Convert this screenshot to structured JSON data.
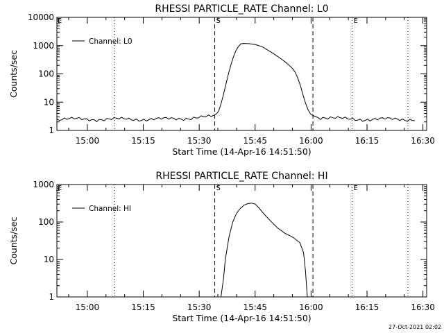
{
  "footer": {
    "timestamp": "27-Oct-2021 02:02"
  },
  "chart_data": [
    {
      "type": "line",
      "title": "RHESSI PARTICLE_RATE Channel: L0",
      "xlabel": "Start Time (14-Apr-16 14:51:50)",
      "ylabel": "Counts/sec",
      "y_scale": "log",
      "ylim": [
        1,
        10000
      ],
      "xlim": [
        "14:51:50",
        "16:31:00"
      ],
      "y_tick_labels": [
        "1",
        "10",
        "100",
        "1000",
        "10000"
      ],
      "x_tick_labels": [
        "15:00",
        "15:15",
        "15:30",
        "15:45",
        "16:00",
        "16:15",
        "16:30"
      ],
      "legend": {
        "position": "top-left",
        "entries": [
          "Channel: L0"
        ]
      },
      "markers": {
        "start_label": "S",
        "end_label": "E"
      },
      "vlines": [
        {
          "time": "15:07:20",
          "style": "dotted"
        },
        {
          "time": "15:34:10",
          "style": "dashed"
        },
        {
          "time": "16:00:30",
          "style": "dashed"
        },
        {
          "time": "16:11:00",
          "style": "dotted"
        },
        {
          "time": "16:26:00",
          "style": "dotted"
        },
        {
          "time": "16:31:00",
          "style": "dotted"
        }
      ],
      "series": [
        {
          "name": "Channel: L0",
          "x": [
            "14:51:50",
            "15:10:00",
            "15:20:00",
            "15:33:00",
            "15:35:00",
            "15:36:00",
            "15:37:00",
            "15:38:00",
            "15:39:00",
            "15:40:00",
            "15:41:00",
            "15:42:00",
            "15:43:00",
            "15:45:00",
            "15:47:00",
            "15:49:00",
            "15:51:00",
            "15:53:00",
            "15:55:00",
            "15:56:00",
            "15:57:00",
            "15:58:00",
            "15:59:00",
            "16:00:00",
            "16:02:00",
            "16:10:00",
            "16:20:00",
            "16:28:00"
          ],
          "y": [
            2.5,
            2.5,
            2.5,
            3,
            4,
            10,
            35,
            120,
            350,
            750,
            1150,
            1200,
            1180,
            1100,
            900,
            620,
            420,
            270,
            160,
            100,
            45,
            15,
            6,
            3.5,
            3,
            2.5,
            2.5,
            2.5
          ],
          "baseline_noise": true
        }
      ]
    },
    {
      "type": "line",
      "title": "RHESSI PARTICLE_RATE Channel: HI",
      "xlabel": "Start Time (14-Apr-16 14:51:50)",
      "ylabel": "Counts/sec",
      "y_scale": "log",
      "ylim": [
        1,
        1000
      ],
      "xlim": [
        "14:51:50",
        "16:31:00"
      ],
      "y_tick_labels": [
        "1",
        "10",
        "100",
        "1000"
      ],
      "x_tick_labels": [
        "15:00",
        "15:15",
        "15:30",
        "15:45",
        "16:00",
        "16:15",
        "16:30"
      ],
      "legend": {
        "position": "top-left",
        "entries": [
          "Channel: HI"
        ]
      },
      "markers": {
        "start_label": "S",
        "end_label": "E"
      },
      "vlines": [
        {
          "time": "15:07:20",
          "style": "dotted"
        },
        {
          "time": "15:34:10",
          "style": "dashed"
        },
        {
          "time": "16:00:30",
          "style": "dashed"
        },
        {
          "time": "16:11:00",
          "style": "dotted"
        },
        {
          "time": "16:26:00",
          "style": "dotted"
        },
        {
          "time": "16:31:00",
          "style": "dotted"
        }
      ],
      "series": [
        {
          "name": "Channel: HI",
          "x": [
            "15:35:50",
            "15:36:30",
            "15:37:00",
            "15:38:00",
            "15:39:00",
            "15:40:00",
            "15:41:00",
            "15:42:00",
            "15:43:00",
            "15:44:00",
            "15:45:00",
            "15:46:00",
            "15:47:00",
            "15:49:00",
            "15:51:00",
            "15:53:00",
            "15:55:00",
            "15:57:00",
            "15:58:00",
            "15:58:30",
            "15:59:00"
          ],
          "y": [
            1,
            3,
            10,
            40,
            100,
            170,
            230,
            280,
            310,
            320,
            300,
            240,
            180,
            110,
            70,
            50,
            40,
            28,
            15,
            5,
            1
          ]
        }
      ]
    }
  ]
}
